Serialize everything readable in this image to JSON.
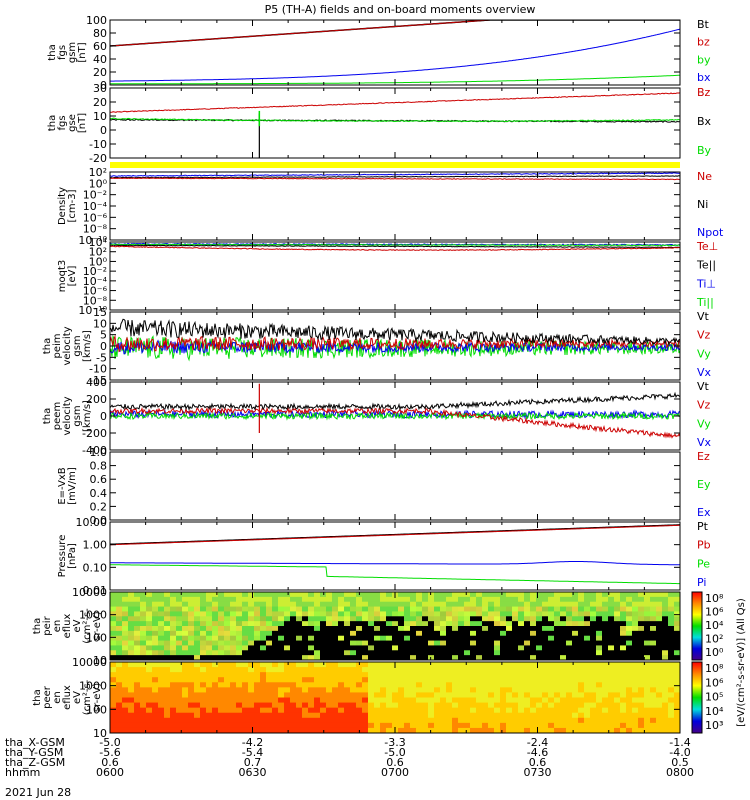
{
  "title": "P5 (TH-A) fields and on-board moments overview",
  "date": "2021 Jun 28",
  "colors": {
    "black": "#000000",
    "red": "#cc0000",
    "green": "#00dd00",
    "blue": "#0000ee",
    "yellow": "#ffff00"
  },
  "chart_data": [
    {
      "type": "line",
      "panel": "tha_fgs_gsm",
      "ylabel": [
        "tha",
        "fgs",
        "gsm",
        "[nT]"
      ],
      "ylim": [
        0,
        100
      ],
      "yticks": [
        "100",
        "80",
        "60",
        "40",
        "20",
        "0"
      ],
      "legend": [
        "Bt",
        "bz",
        "by",
        "bx"
      ]
    },
    {
      "type": "line",
      "panel": "tha_fgs_gse",
      "ylabel": [
        "tha",
        "fgs",
        "gse",
        "[nT]"
      ],
      "ylim": [
        -25,
        30
      ],
      "yticks": [
        "30",
        "20",
        "10",
        "0",
        "-10",
        "-20"
      ],
      "legend": [
        "Bz",
        "Bx",
        "By"
      ]
    },
    {
      "type": "bar",
      "panel": "flag",
      "ylabel": [],
      "legend": []
    },
    {
      "type": "line",
      "panel": "density",
      "ylabel": [
        "Density",
        "[cm-3]"
      ],
      "scale": "log",
      "yticks": [
        "10²",
        "10⁰",
        "10⁻²",
        "10⁻⁴",
        "10⁻⁶",
        "10⁻⁸",
        "10⁻¹⁰"
      ],
      "legend": [
        "Ne",
        "Ni",
        "Npot"
      ]
    },
    {
      "type": "line",
      "panel": "temperature",
      "ylabel": [
        "moqt3",
        "[eV]"
      ],
      "scale": "log",
      "yticks": [
        "10⁴",
        "10²",
        "10⁰",
        "10⁻²",
        "10⁻⁴",
        "10⁻⁶",
        "10⁻⁸",
        "10⁻¹⁰"
      ],
      "legend": [
        "Te⊥",
        "Te||",
        "Ti⊥",
        "Ti||"
      ]
    },
    {
      "type": "line",
      "panel": "peim_velocity",
      "ylabel": [
        "tha",
        "peim",
        "velocity",
        "gsm",
        "[km/s]"
      ],
      "ylim": [
        -15,
        15
      ],
      "yticks": [
        "15",
        "10",
        "5",
        "0",
        "-5",
        "-10",
        "-15"
      ],
      "legend": [
        "Vt",
        "Vz",
        "Vy",
        "Vx"
      ]
    },
    {
      "type": "line",
      "panel": "peem_velocity",
      "ylabel": [
        "tha",
        "peem",
        "velocity",
        "gsm",
        "[km/s]"
      ],
      "ylim": [
        -400,
        400
      ],
      "yticks": [
        "400",
        "200",
        "0",
        "-200",
        "-400"
      ],
      "legend": [
        "Vt",
        "Vz",
        "Vy",
        "Vx"
      ]
    },
    {
      "type": "line",
      "panel": "efield",
      "ylabel": [
        "E=-VxB",
        "[mV/m]"
      ],
      "ylim": [
        0,
        1
      ],
      "yticks": [
        "1.0",
        "0.8",
        "0.6",
        "0.4",
        "0.2",
        "0.0"
      ],
      "legend": [
        "Ez",
        "Ey",
        "Ex"
      ]
    },
    {
      "type": "line",
      "panel": "pressure",
      "ylabel": [
        "Pressure",
        "[nPa]"
      ],
      "scale": "log",
      "yticks": [
        "10.00",
        "1.00",
        "0.10",
        "0.01"
      ],
      "legend": [
        "Pt",
        "Pb",
        "Pe",
        "Pi"
      ]
    },
    {
      "type": "heatmap",
      "panel": "peir_eflux",
      "ylabel": [
        "tha",
        "peir",
        "en",
        "eflux",
        "eV",
        "(cm²-s-",
        "sr-eV)"
      ],
      "scale": "log",
      "yticks": [
        "10000",
        "1000",
        "100",
        "10"
      ]
    },
    {
      "type": "heatmap",
      "panel": "peer_eflux",
      "ylabel": [
        "tha",
        "peer",
        "en",
        "eflux",
        "eV",
        "(cm²-s-",
        "sr-eV)"
      ],
      "scale": "log",
      "yticks": [
        "10000",
        "1000",
        "100",
        "10"
      ]
    }
  ],
  "colorbar": {
    "upper": [
      "10⁸",
      "10⁶",
      "10⁴",
      "10²",
      "10⁰"
    ],
    "lower": [
      "10⁸",
      "10⁶",
      "10⁵",
      "10⁴",
      "10³"
    ],
    "label": "[eV/(cm²-s-sr-eV)] (All Qs)"
  },
  "xaxis": {
    "rows": [
      {
        "label": "tha_X-GSM",
        "values": [
          "-5.0",
          "-4.2",
          "-3.3",
          "-2.4",
          "-1.4"
        ]
      },
      {
        "label": "tha_Y-GSM",
        "values": [
          "-5.6",
          "-5.4",
          "-5.0",
          "-4.6",
          "-4.0"
        ]
      },
      {
        "label": "tha_Z-GSM",
        "values": [
          "0.6",
          "0.7",
          "0.6",
          "0.6",
          "0.5"
        ]
      },
      {
        "label": "hhmm",
        "values": [
          "0600",
          "0630",
          "0700",
          "0730",
          "0800"
        ]
      }
    ]
  }
}
